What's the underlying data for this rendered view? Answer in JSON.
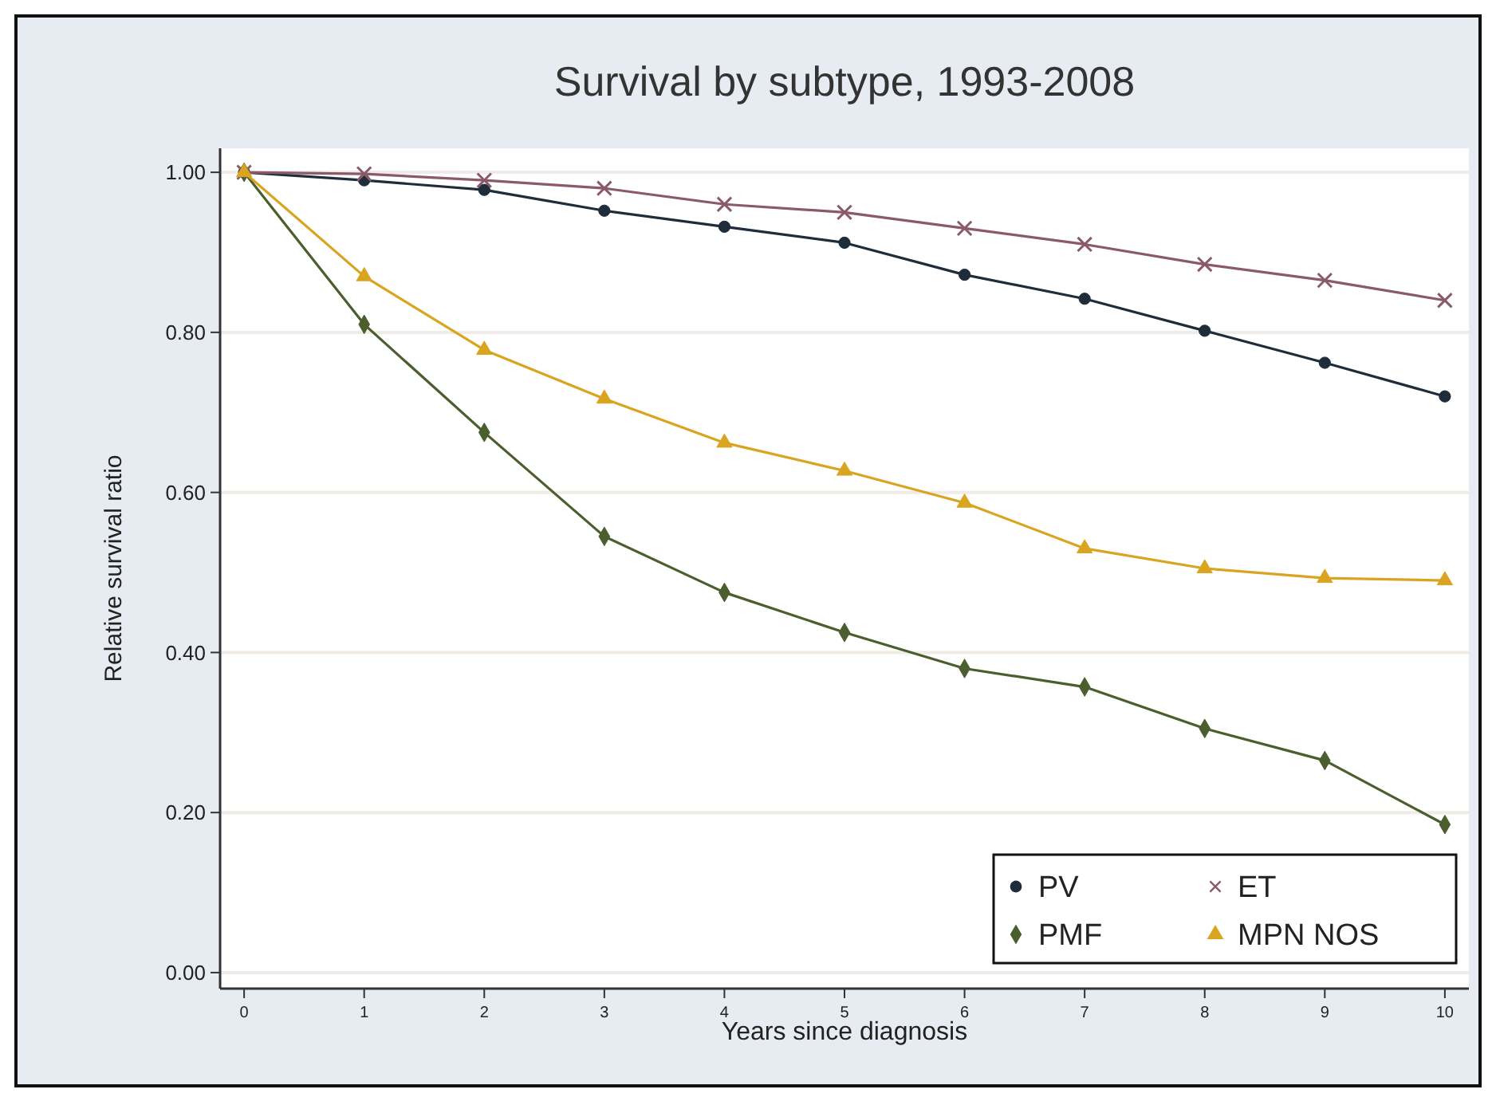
{
  "chart_data": {
    "type": "line",
    "title": "Survival by subtype, 1993-2008",
    "xlabel": "Years since diagnosis",
    "ylabel": "Relative survival ratio",
    "x": [
      0,
      1,
      2,
      3,
      4,
      5,
      6,
      7,
      8,
      9,
      10
    ],
    "xlim": [
      -0.2,
      10.2
    ],
    "xticks": [
      0,
      1,
      2,
      3,
      4,
      5,
      6,
      7,
      8,
      9,
      10
    ],
    "ylim": [
      -0.02,
      1.03
    ],
    "yticks": [
      {
        "value": 0,
        "label": "0.00"
      },
      {
        "value": 0.2,
        "label": "0.20"
      },
      {
        "value": 0.4,
        "label": "0.40"
      },
      {
        "value": 0.6,
        "label": "0.60"
      },
      {
        "value": 0.8,
        "label": "0.80"
      },
      {
        "value": 1,
        "label": "1.00"
      }
    ],
    "grid": "y",
    "legend": "bottom right",
    "line_style": "solid",
    "series": [
      {
        "name": "PV",
        "color": "#1f2d3a",
        "marker": "circle",
        "values": [
          1.0,
          0.99,
          0.978,
          0.952,
          0.932,
          0.912,
          0.872,
          0.842,
          0.802,
          0.762,
          0.72
        ]
      },
      {
        "name": "ET",
        "color": "#8a5a6a",
        "marker": "cross",
        "values": [
          1.0,
          0.998,
          0.99,
          0.98,
          0.96,
          0.95,
          0.93,
          0.91,
          0.885,
          0.865,
          0.84
        ]
      },
      {
        "name": "PMF",
        "color": "#4a5e2e",
        "marker": "diamond",
        "values": [
          1.0,
          0.81,
          0.675,
          0.545,
          0.475,
          0.425,
          0.38,
          0.357,
          0.305,
          0.265,
          0.185
        ]
      },
      {
        "name": "MPN NOS",
        "color": "#d9a520",
        "marker": "triangle",
        "values": [
          1.0,
          0.87,
          0.778,
          0.717,
          0.662,
          0.627,
          0.587,
          0.53,
          0.505,
          0.493,
          0.49
        ]
      }
    ]
  }
}
